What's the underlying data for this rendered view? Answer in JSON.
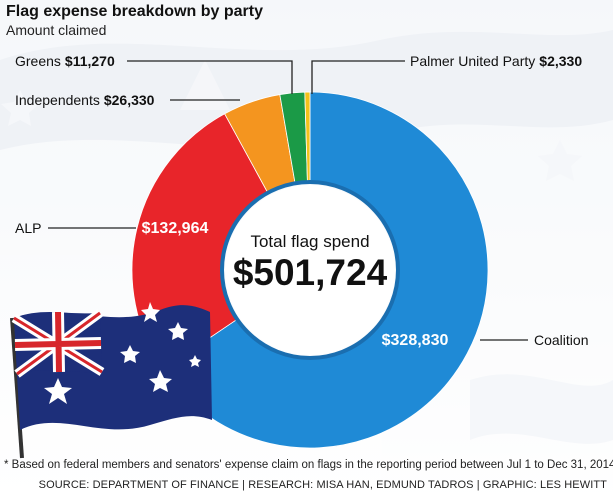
{
  "title": "Flag expense breakdown by party",
  "subtitle": "Amount claimed",
  "footnote": "* Based on federal members and senators' expense claim on flags in the reporting period between Jul 1 to Dec 31, 2014",
  "source": "SOURCE: DEPARTMENT OF FINANCE | RESEARCH: MISA HAN, EDMUND TADROS | GRAPHIC: LES HEWITT",
  "colors": {
    "coalition": "#1f8ad6",
    "alp": "#e8252a",
    "independents": "#f4951f",
    "greens": "#1b9a47",
    "palmer": "#f3c21b"
  },
  "chart_data": {
    "type": "pie",
    "title": "Flag expense breakdown by party",
    "subtitle": "Amount claimed",
    "center_label": "Total flag spend",
    "center_value": "$501,724",
    "total": 501724,
    "slices": [
      {
        "name": "Coalition",
        "value": 328830,
        "label": "$328,830",
        "color": "#1f8ad6"
      },
      {
        "name": "ALP",
        "value": 132964,
        "label": "$132,964",
        "color": "#e8252a"
      },
      {
        "name": "Independents",
        "value": 26330,
        "label": "$26,330",
        "color": "#f4951f"
      },
      {
        "name": "Greens",
        "value": 11270,
        "label": "$11,270",
        "color": "#1b9a47"
      },
      {
        "name": "Palmer United Party",
        "value": 2330,
        "label": "$2,330",
        "color": "#f3c21b"
      }
    ]
  }
}
